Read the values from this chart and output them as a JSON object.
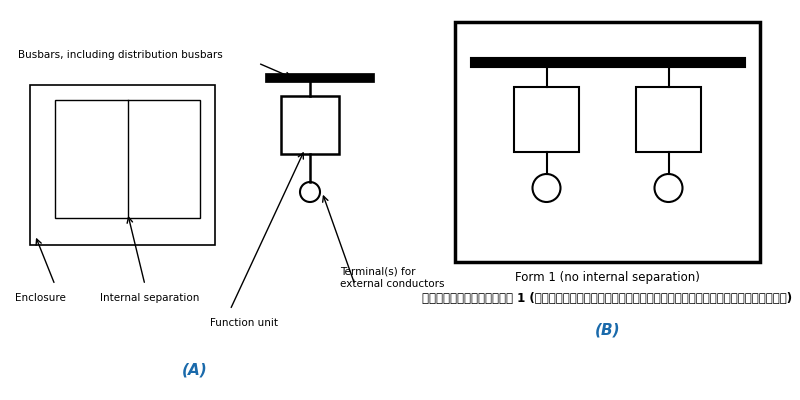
{
  "bg_color": "#ffffff",
  "line_color": "#000000",
  "blue_color": "#1a6aab",
  "fig_width": 8.0,
  "fig_height": 4.0,
  "label_A": "(A)",
  "label_B": "(B)",
  "busbar_label": "Busbars, including distribution busbars",
  "enclosure_label": "Enclosure",
  "internal_sep_label": "Internal separation",
  "function_unit_label": "Function unit",
  "terminal_label1": "Terminal(s) for",
  "terminal_label2": "external conductors",
  "form1_label_en": "Form 1 (no internal separation)",
  "form1_label_th": "ตู้ไฟฟ้าฟอร์ม 1 (ไม่มีอุปกรณ์ปิดกั้นเพื่อแยกส่วนภายใน)"
}
